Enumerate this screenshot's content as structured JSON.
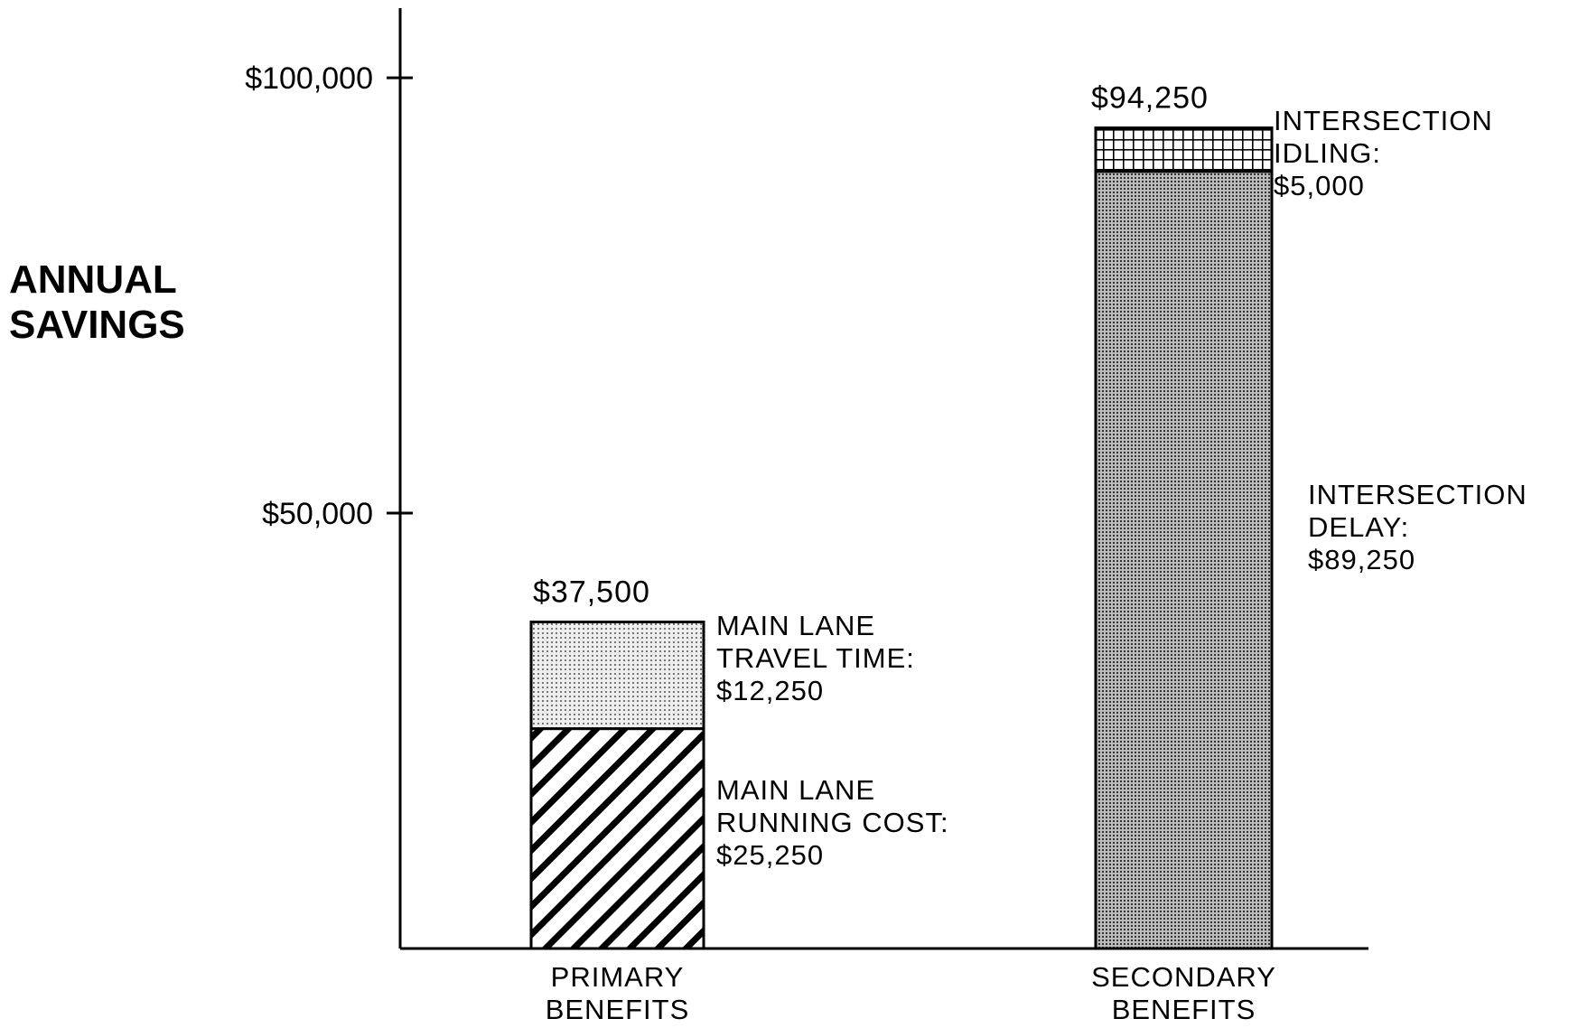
{
  "chart_data": {
    "type": "stacked_bar",
    "ylabel": "ANNUAL SAVINGS",
    "categories": [
      "PRIMARY BENEFITS",
      "SECONDARY BENEFITS"
    ],
    "series": [
      {
        "name": "MAIN LANE RUNNING COST:",
        "values": [
          25250,
          null
        ],
        "value_labels": [
          "$25,250",
          null
        ]
      },
      {
        "name": "MAIN LANE TRAVEL TIME:",
        "values": [
          12250,
          null
        ],
        "value_labels": [
          "$12,250",
          null
        ]
      },
      {
        "name": "INTERSECTION DELAY:",
        "values": [
          null,
          89250
        ],
        "value_labels": [
          null,
          "$89,250"
        ]
      },
      {
        "name": "INTERSECTION IDLING:",
        "values": [
          null,
          5000
        ],
        "value_labels": [
          null,
          "$5,000"
        ]
      }
    ],
    "totals": [
      37500,
      94250
    ],
    "total_labels": [
      "$37,500",
      "$94,250"
    ],
    "ylim": [
      0,
      108000
    ],
    "yticks": [
      {
        "value": 50000,
        "label": "$50,000"
      },
      {
        "value": 100000,
        "label": "$100,000"
      }
    ]
  }
}
